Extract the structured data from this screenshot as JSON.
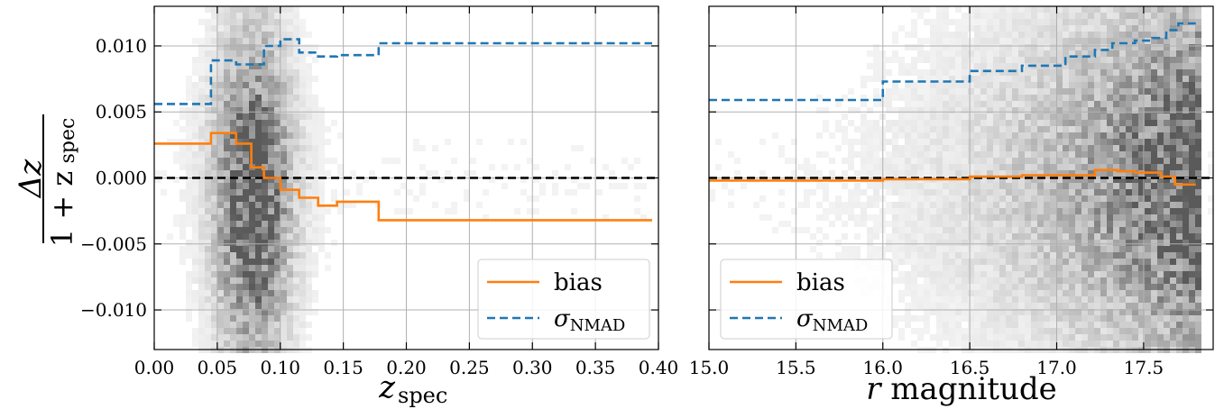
{
  "chart_data": [
    {
      "type": "line",
      "panel": "left",
      "xlabel": "z",
      "xlabel_sub": "spec",
      "ylabel_num": "Δz",
      "ylabel_den": "1 + z",
      "ylabel_den_sub": "spec",
      "xlim": [
        0.0,
        0.4
      ],
      "ylim": [
        -0.013,
        0.013
      ],
      "xticks": [
        "0.00",
        "0.05",
        "0.10",
        "0.15",
        "0.20",
        "0.25",
        "0.30",
        "0.35",
        "0.40"
      ],
      "xtick_values": [
        0.0,
        0.05,
        0.1,
        0.15,
        0.2,
        0.25,
        0.3,
        0.35,
        0.4
      ],
      "yticks": [
        "0.010",
        "0.005",
        "0.000",
        "−0.005",
        "−0.010"
      ],
      "ytick_values": [
        0.01,
        0.005,
        0.0,
        -0.005,
        -0.01
      ],
      "grid": true,
      "zero_line": 0.0,
      "legend": {
        "placement": "lower-right",
        "entries": [
          {
            "label": "bias",
            "color": "#ff7f0e",
            "style": "solid"
          },
          {
            "label": "σ",
            "sub": "NMAD",
            "color": "#1f77b4",
            "style": "dashed"
          }
        ]
      },
      "series": [
        {
          "name": "bias",
          "color": "#ff7f0e",
          "style": "step-solid",
          "edges": [
            0.0,
            0.045,
            0.065,
            0.077,
            0.087,
            0.1,
            0.115,
            0.13,
            0.145,
            0.178,
            0.395
          ],
          "values": [
            0.0026,
            0.0034,
            0.0026,
            0.0008,
            0.0,
            -0.0009,
            -0.0015,
            -0.0021,
            -0.0018,
            -0.0032
          ]
        },
        {
          "name": "σNMAD",
          "color": "#1f77b4",
          "style": "step-dashed",
          "edges": [
            0.0,
            0.045,
            0.065,
            0.087,
            0.1,
            0.115,
            0.13,
            0.145,
            0.178,
            0.395
          ],
          "values": [
            0.0056,
            0.0089,
            0.0086,
            0.01,
            0.0105,
            0.0095,
            0.0092,
            0.0093,
            0.0102
          ]
        }
      ]
    },
    {
      "type": "line",
      "panel": "right",
      "xlabel": "r magnitude",
      "xlim": [
        15.0,
        17.9
      ],
      "ylim": [
        -0.013,
        0.013
      ],
      "xticks": [
        "15.0",
        "15.5",
        "16.0",
        "16.5",
        "17.0",
        "17.5"
      ],
      "xtick_values": [
        15.0,
        15.5,
        16.0,
        16.5,
        17.0,
        17.5
      ],
      "ytick_values": [
        0.01,
        0.005,
        0.0,
        -0.005,
        -0.01
      ],
      "grid": true,
      "zero_line": 0.0,
      "legend": {
        "placement": "lower-left",
        "entries": [
          {
            "label": "bias",
            "color": "#ff7f0e",
            "style": "solid"
          },
          {
            "label": "σ",
            "sub": "NMAD",
            "color": "#1f77b4",
            "style": "dashed"
          }
        ]
      },
      "series": [
        {
          "name": "bias",
          "color": "#ff7f0e",
          "style": "step-solid",
          "edges": [
            15.0,
            16.0,
            16.5,
            16.8,
            17.05,
            17.22,
            17.35,
            17.45,
            17.6,
            17.68,
            17.8
          ],
          "values": [
            -0.0002,
            -0.0001,
            0.0001,
            0.0002,
            0.0002,
            0.0006,
            0.0005,
            0.0004,
            0.0001,
            -0.0005
          ]
        },
        {
          "name": "σNMAD",
          "color": "#1f77b4",
          "style": "step-dashed",
          "edges": [
            15.0,
            16.0,
            16.5,
            16.8,
            17.05,
            17.22,
            17.32,
            17.45,
            17.55,
            17.63,
            17.7,
            17.8
          ],
          "values": [
            0.0059,
            0.0073,
            0.0081,
            0.0085,
            0.0092,
            0.0097,
            0.0102,
            0.0104,
            0.0106,
            0.0112,
            0.0117
          ]
        }
      ]
    }
  ]
}
